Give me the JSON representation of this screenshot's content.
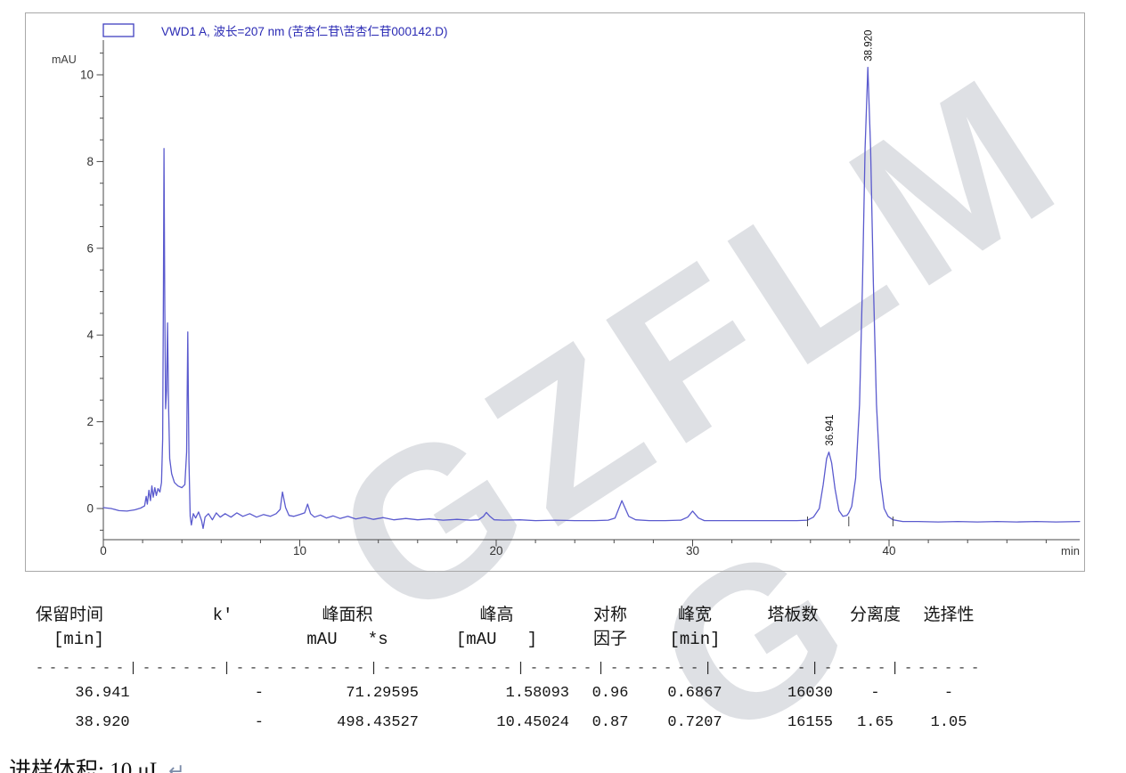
{
  "legend": {
    "label": "VWD1 A, 波长=207 nm (苦杏仁苷\\苦杏仁苷000142.D)"
  },
  "watermark": {
    "text": "GZFLM",
    "fragment": "G"
  },
  "chart_data": {
    "type": "line",
    "title": "VWD1 A, 波长=207 nm (苦杏仁苷\\苦杏仁苷000142.D)",
    "xlabel": "min",
    "ylabel": "mAU",
    "xlim": [
      0,
      49.7
    ],
    "ylim": [
      -0.7,
      10.8
    ],
    "x_ticks": [
      0,
      10,
      20,
      30,
      40
    ],
    "y_ticks": [
      0,
      2,
      4,
      6,
      8,
      10
    ],
    "x_minor_step": 2,
    "y_minor_step": 0.5,
    "grid": false,
    "legend_position": "top-left",
    "trace_color": "#5a5ace",
    "baseline_mAU_at_peaks": -0.28,
    "peaks": [
      {
        "rt": 36.941,
        "height": 1.58093,
        "label": "36.941"
      },
      {
        "rt": 38.92,
        "height": 10.45024,
        "label": "38.920"
      }
    ],
    "integration_ticks": [
      35.85,
      37.95,
      40.2
    ],
    "series": [
      {
        "name": "VWD1 A",
        "points": [
          [
            0,
            0.02
          ],
          [
            0.4,
            0
          ],
          [
            0.8,
            -0.05
          ],
          [
            1.2,
            -0.06
          ],
          [
            1.6,
            -0.03
          ],
          [
            1.9,
            0.01
          ],
          [
            2.1,
            0.06
          ],
          [
            2.18,
            0.28
          ],
          [
            2.24,
            0.1
          ],
          [
            2.32,
            0.42
          ],
          [
            2.4,
            0.18
          ],
          [
            2.47,
            0.52
          ],
          [
            2.54,
            0.26
          ],
          [
            2.62,
            0.48
          ],
          [
            2.7,
            0.3
          ],
          [
            2.78,
            0.46
          ],
          [
            2.88,
            0.38
          ],
          [
            2.96,
            0.6
          ],
          [
            3.02,
            1.6
          ],
          [
            3.06,
            5.2
          ],
          [
            3.09,
            8.3
          ],
          [
            3.13,
            4.6
          ],
          [
            3.17,
            2.3
          ],
          [
            3.22,
            2.7
          ],
          [
            3.27,
            4.28
          ],
          [
            3.32,
            2.4
          ],
          [
            3.38,
            1.15
          ],
          [
            3.48,
            0.8
          ],
          [
            3.62,
            0.6
          ],
          [
            3.8,
            0.52
          ],
          [
            4.0,
            0.48
          ],
          [
            4.15,
            0.55
          ],
          [
            4.24,
            1.3
          ],
          [
            4.3,
            4.07
          ],
          [
            4.36,
            1.1
          ],
          [
            4.42,
            -0.18
          ],
          [
            4.48,
            -0.38
          ],
          [
            4.58,
            -0.12
          ],
          [
            4.7,
            -0.22
          ],
          [
            4.85,
            -0.08
          ],
          [
            5.0,
            -0.28
          ],
          [
            5.08,
            -0.46
          ],
          [
            5.18,
            -0.2
          ],
          [
            5.35,
            -0.12
          ],
          [
            5.55,
            -0.26
          ],
          [
            5.75,
            -0.1
          ],
          [
            5.95,
            -0.2
          ],
          [
            6.2,
            -0.12
          ],
          [
            6.5,
            -0.2
          ],
          [
            6.8,
            -0.1
          ],
          [
            7.1,
            -0.18
          ],
          [
            7.45,
            -0.12
          ],
          [
            7.8,
            -0.2
          ],
          [
            8.15,
            -0.14
          ],
          [
            8.5,
            -0.18
          ],
          [
            8.8,
            -0.12
          ],
          [
            9.0,
            -0.02
          ],
          [
            9.12,
            0.38
          ],
          [
            9.28,
            0.02
          ],
          [
            9.45,
            -0.16
          ],
          [
            9.7,
            -0.18
          ],
          [
            10.0,
            -0.14
          ],
          [
            10.25,
            -0.1
          ],
          [
            10.4,
            0.1
          ],
          [
            10.55,
            -0.12
          ],
          [
            10.75,
            -0.2
          ],
          [
            11.05,
            -0.15
          ],
          [
            11.35,
            -0.22
          ],
          [
            11.7,
            -0.17
          ],
          [
            12.05,
            -0.23
          ],
          [
            12.45,
            -0.18
          ],
          [
            12.85,
            -0.24
          ],
          [
            13.3,
            -0.2
          ],
          [
            13.75,
            -0.25
          ],
          [
            14.25,
            -0.21
          ],
          [
            14.8,
            -0.26
          ],
          [
            15.4,
            -0.23
          ],
          [
            16.0,
            -0.26
          ],
          [
            16.6,
            -0.24
          ],
          [
            17.3,
            -0.27
          ],
          [
            18.0,
            -0.25
          ],
          [
            18.7,
            -0.27
          ],
          [
            19.1,
            -0.26
          ],
          [
            19.35,
            -0.18
          ],
          [
            19.5,
            -0.09
          ],
          [
            19.68,
            -0.18
          ],
          [
            19.9,
            -0.26
          ],
          [
            20.4,
            -0.27
          ],
          [
            21.2,
            -0.26
          ],
          [
            22.0,
            -0.28
          ],
          [
            23.0,
            -0.27
          ],
          [
            24.0,
            -0.28
          ],
          [
            25.0,
            -0.28
          ],
          [
            25.7,
            -0.27
          ],
          [
            26.05,
            -0.22
          ],
          [
            26.4,
            0.18
          ],
          [
            26.75,
            -0.18
          ],
          [
            27.1,
            -0.26
          ],
          [
            27.8,
            -0.28
          ],
          [
            28.6,
            -0.28
          ],
          [
            29.4,
            -0.27
          ],
          [
            29.75,
            -0.2
          ],
          [
            30.0,
            -0.06
          ],
          [
            30.3,
            -0.22
          ],
          [
            30.6,
            -0.28
          ],
          [
            31.4,
            -0.28
          ],
          [
            32.4,
            -0.28
          ],
          [
            33.4,
            -0.28
          ],
          [
            34.4,
            -0.28
          ],
          [
            35.3,
            -0.28
          ],
          [
            35.85,
            -0.27
          ],
          [
            36.15,
            -0.2
          ],
          [
            36.45,
            0.0
          ],
          [
            36.65,
            0.55
          ],
          [
            36.82,
            1.15
          ],
          [
            36.94,
            1.3
          ],
          [
            37.08,
            1.05
          ],
          [
            37.25,
            0.45
          ],
          [
            37.45,
            -0.05
          ],
          [
            37.65,
            -0.18
          ],
          [
            37.85,
            -0.16
          ],
          [
            37.95,
            -0.1
          ],
          [
            38.1,
            0.05
          ],
          [
            38.3,
            0.7
          ],
          [
            38.5,
            2.4
          ],
          [
            38.65,
            5.2
          ],
          [
            38.78,
            8.3
          ],
          [
            38.92,
            10.17
          ],
          [
            39.06,
            8.3
          ],
          [
            39.2,
            5.2
          ],
          [
            39.36,
            2.4
          ],
          [
            39.55,
            0.7
          ],
          [
            39.75,
            0.0
          ],
          [
            39.95,
            -0.18
          ],
          [
            40.2,
            -0.26
          ],
          [
            40.7,
            -0.3
          ],
          [
            41.5,
            -0.3
          ],
          [
            42.5,
            -0.31
          ],
          [
            43.5,
            -0.3
          ],
          [
            44.5,
            -0.31
          ],
          [
            45.5,
            -0.3
          ],
          [
            46.5,
            -0.31
          ],
          [
            47.5,
            -0.3
          ],
          [
            48.5,
            -0.31
          ],
          [
            49.7,
            -0.3
          ]
        ]
      }
    ]
  },
  "table": {
    "header_row1": [
      "保留时间",
      "k'",
      "峰面积",
      "峰高",
      "对称",
      "峰宽",
      "塔板数",
      "分离度",
      "选择性"
    ],
    "header_row2": [
      "[min]",
      "",
      "mAU   *s",
      "[mAU   ]",
      "因子",
      "[min]",
      "",
      "",
      ""
    ],
    "separator": "-------|------|----------|----------|-----|-------|-------|-----|------",
    "rows": [
      [
        "36.941",
        "-",
        "71.29595",
        "1.58093",
        "0.96",
        "0.6867",
        "16030",
        "-",
        "-"
      ],
      [
        "38.920",
        "-",
        "498.43527",
        "10.45024",
        "0.87",
        "0.7207",
        "16155",
        "1.65",
        "1.05"
      ]
    ]
  },
  "footer": {
    "text": "进样体积: 10 μL",
    "return_mark": "↵"
  }
}
